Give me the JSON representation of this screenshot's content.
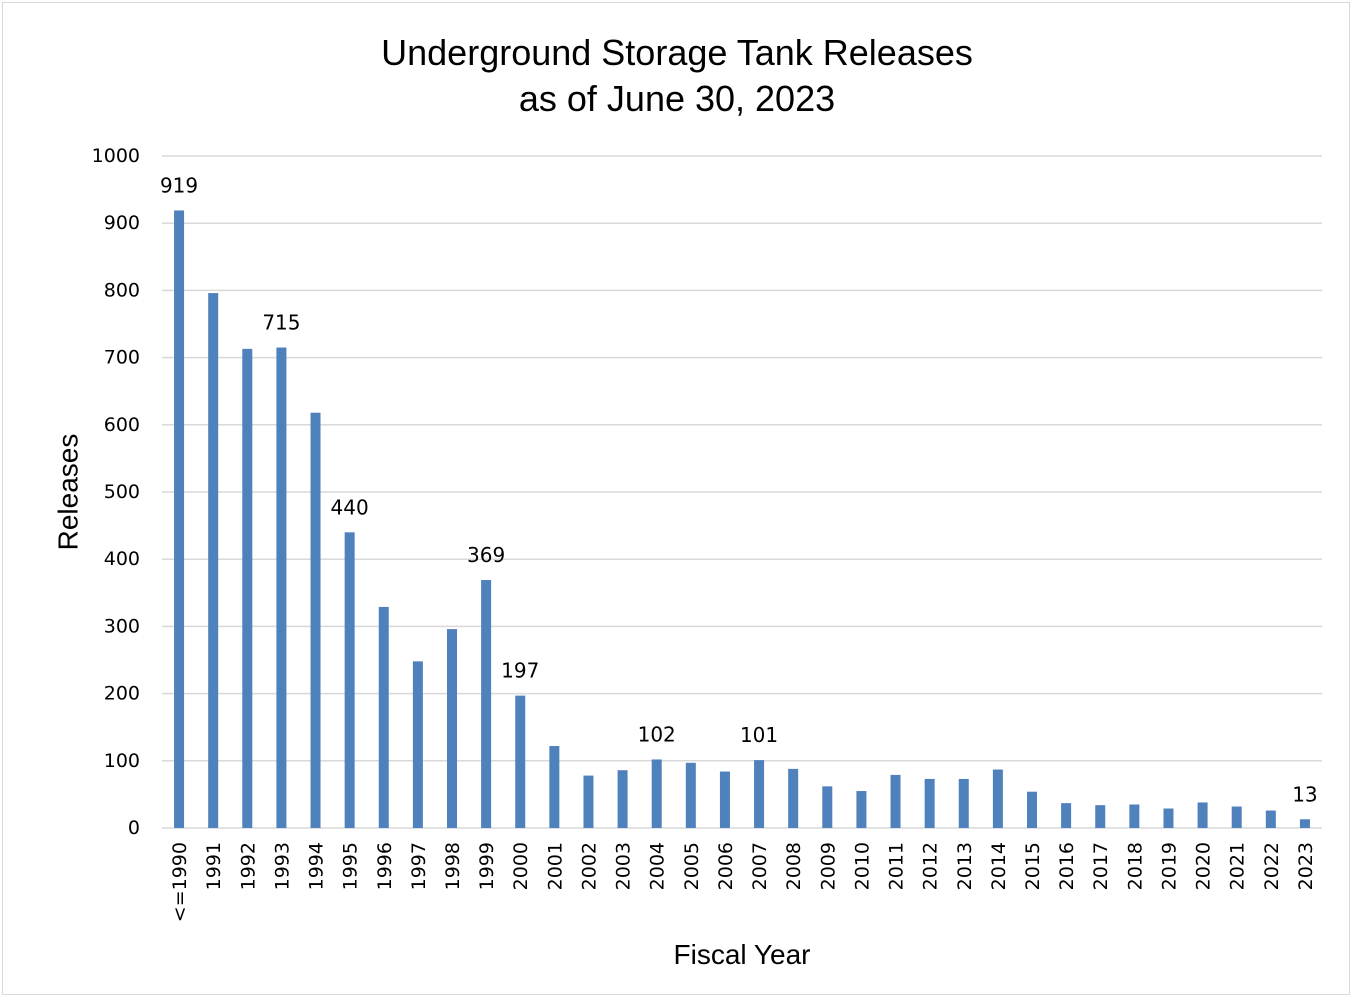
{
  "chart_data": {
    "type": "bar",
    "title": "Underground Storage Tank Releases",
    "subtitle": "as of June 30, 2023",
    "xlabel": "Fiscal Year",
    "ylabel": "Releases",
    "ylim": [
      0,
      1000
    ],
    "yticks": [
      "0",
      "100",
      "200",
      "300",
      "400",
      "500",
      "600",
      "700",
      "800",
      "900",
      "1000"
    ],
    "grid": true,
    "bar_color": "#4f81bd",
    "categories": [
      "<=1990",
      "1991",
      "1992",
      "1993",
      "1994",
      "1995",
      "1996",
      "1997",
      "1998",
      "1999",
      "2000",
      "2001",
      "2002",
      "2003",
      "2004",
      "2005",
      "2006",
      "2007",
      "2008",
      "2009",
      "2010",
      "2011",
      "2012",
      "2013",
      "2014",
      "2015",
      "2016",
      "2017",
      "2018",
      "2019",
      "2020",
      "2021",
      "2022",
      "2023"
    ],
    "values": [
      919,
      796,
      713,
      715,
      618,
      440,
      329,
      248,
      296,
      369,
      197,
      122,
      78,
      86,
      102,
      97,
      84,
      101,
      88,
      62,
      55,
      79,
      73,
      73,
      87,
      54,
      37,
      34,
      35,
      29,
      38,
      32,
      26,
      13
    ],
    "data_labels": [
      {
        "category": "<=1990",
        "text": "919"
      },
      {
        "category": "1993",
        "text": "715"
      },
      {
        "category": "1995",
        "text": "440"
      },
      {
        "category": "1999",
        "text": "369"
      },
      {
        "category": "2000",
        "text": "197"
      },
      {
        "category": "2004",
        "text": "102"
      },
      {
        "category": "2007",
        "text": "101"
      },
      {
        "category": "2023",
        "text": "13"
      }
    ]
  }
}
